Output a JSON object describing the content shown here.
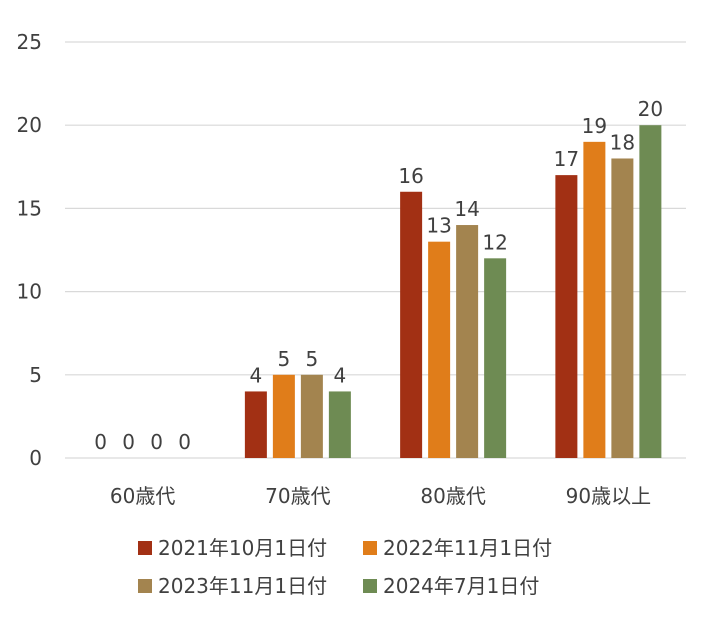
{
  "chart_data": {
    "type": "bar",
    "categories": [
      "60歳代",
      "70歳代",
      "80歳代",
      "90歳以上"
    ],
    "series": [
      {
        "name": "2021年10月1日付",
        "color": "#a23014",
        "values": [
          0,
          4,
          16,
          17
        ]
      },
      {
        "name": "2022年11月1日付",
        "color": "#e07d1a",
        "values": [
          0,
          5,
          13,
          19
        ]
      },
      {
        "name": "2023年11月1日付",
        "color": "#a3844f",
        "values": [
          0,
          5,
          14,
          18
        ]
      },
      {
        "name": "2024年7月1日付",
        "color": "#6e8b53",
        "values": [
          0,
          4,
          12,
          20
        ]
      }
    ],
    "ylim": [
      0,
      25
    ],
    "yticks": [
      0,
      5,
      10,
      15,
      20,
      25
    ],
    "grid": true,
    "legend_position": "bottom",
    "title": "",
    "xlabel": "",
    "ylabel": ""
  }
}
